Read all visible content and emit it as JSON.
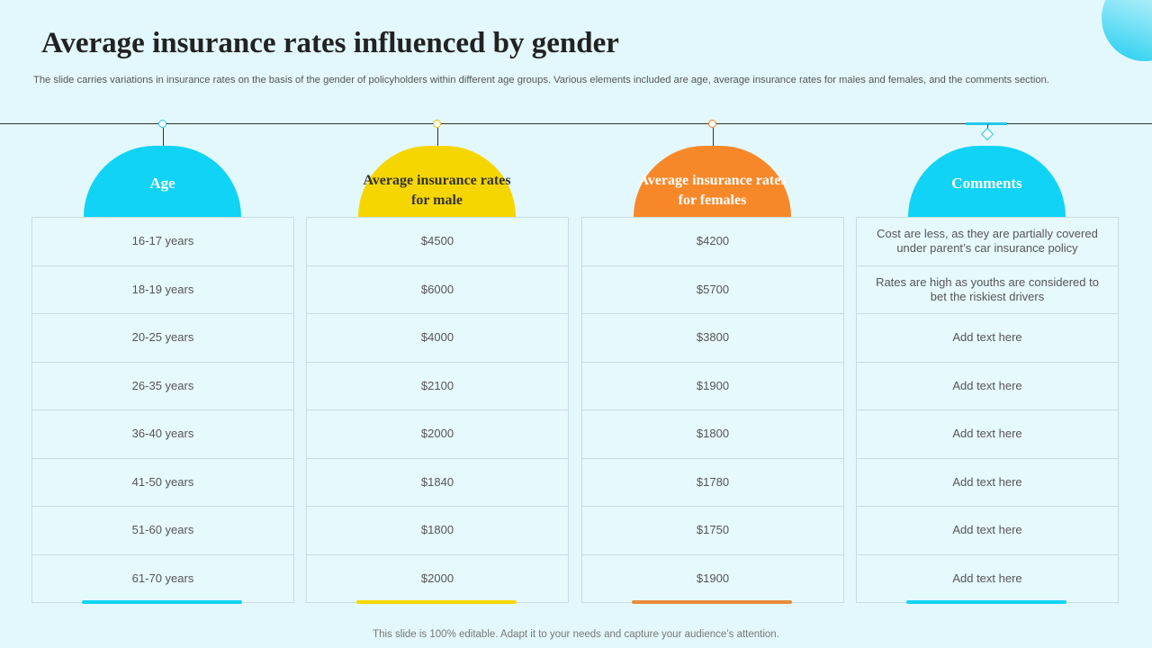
{
  "title": "Average insurance rates influenced by gender",
  "subtitle": "The slide carries variations in insurance rates on the basis of the gender of policyholders within different age groups. Various elements included are age, average insurance rates for males and females, and the comments section.",
  "columns": [
    {
      "header": "Age",
      "color": "#10d3f5",
      "rows": [
        "16-17 years",
        "18-19 years",
        "20-25 years",
        "26-35 years",
        "36-40 years",
        "41-50 years",
        "51-60 years",
        "61-70 years"
      ]
    },
    {
      "header": "Average insurance rates for male",
      "color": "#f6d600",
      "rows": [
        "$4500",
        "$6000",
        "$4000",
        "$2100",
        "$2000",
        "$1840",
        "$1800",
        "$2000"
      ]
    },
    {
      "header": "Average insurance rates for females",
      "color": "#f7882a",
      "rows": [
        "$4200",
        "$5700",
        "$3800",
        "$1900",
        "$1800",
        "$1780",
        "$1750",
        "$1900"
      ]
    },
    {
      "header": "Comments",
      "color": "#10d3f5",
      "rows": [
        "Cost are less, as they are partially covered under parent’s car insurance policy",
        "Rates are high as youths are considered to bet the riskiest drivers",
        "Add text here",
        "Add text here",
        "Add text here",
        "Add text here",
        "Add text here",
        "Add text here"
      ]
    }
  ],
  "footer": "This slide is 100% editable. Adapt it to your needs and capture your audience’s attention."
}
